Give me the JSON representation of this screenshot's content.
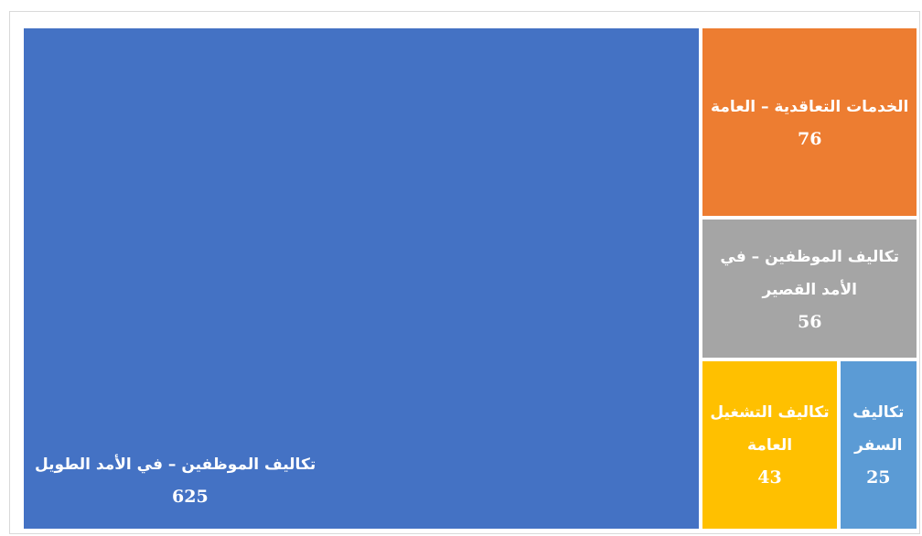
{
  "chart_data": {
    "type": "treemap",
    "categories": [
      "تكاليف الموظفين – في الأمد الطويل",
      "الخدمات التعاقدية – العامة",
      "تكاليف الموظفين – في الأمد القصير",
      "تكاليف التشغيل العامة",
      "تكاليف السفر"
    ],
    "values": [
      625,
      76,
      56,
      43,
      25
    ],
    "colors": [
      "#4472c4",
      "#ed7d31",
      "#a5a5a5",
      "#ffc000",
      "#5b9bd5"
    ]
  }
}
